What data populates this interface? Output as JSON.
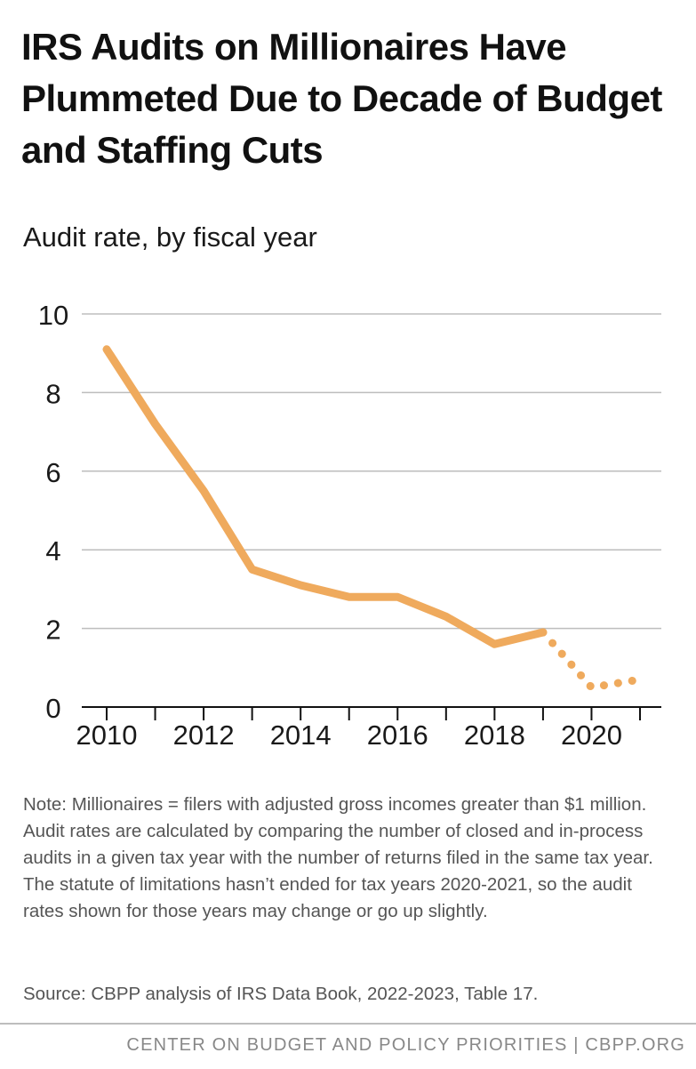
{
  "header": {
    "title": "IRS Audits on Millionaires Have Plummeted Due to Decade of Budget and Staffing Cuts",
    "subtitle": "Audit rate, by fiscal year"
  },
  "chart_data": {
    "type": "line",
    "title": "IRS Audits on Millionaires Have Plummeted Due to Decade of Budget and Staffing Cuts",
    "ylabel": "Audit rate, by fiscal year",
    "xlabel": "",
    "x": [
      2010,
      2011,
      2012,
      2013,
      2014,
      2015,
      2016,
      2017,
      2018,
      2019,
      2020,
      2021
    ],
    "series": [
      {
        "name": "Audit rate",
        "values": [
          9.1,
          7.2,
          5.5,
          3.5,
          3.1,
          2.8,
          2.8,
          2.3,
          1.6,
          1.9,
          0.5,
          0.7
        ],
        "dashed_from_index": 9,
        "color": "#EFAA5D"
      }
    ],
    "xlim": [
      2010,
      2021
    ],
    "ylim": [
      0,
      10
    ],
    "x_ticks": [
      2010,
      2012,
      2014,
      2016,
      2018,
      2020
    ],
    "y_ticks": [
      0,
      2,
      4,
      6,
      8,
      10
    ],
    "grid": true,
    "gridline_color": "#bdbdbd",
    "axis_color": "#111111"
  },
  "notes": {
    "note": "Note: Millionaires = filers with adjusted gross incomes greater than $1 million. Audit rates are calculated by comparing the number of closed and in-process audits in a given tax year with the number of returns filed in the same tax year. The statute of limitations hasn’t ended for tax years 2020-2021, so the audit rates shown for those years may change or go up slightly.",
    "source": "Source: CBPP analysis of IRS Data Book, 2022-2023, Table 17."
  },
  "footer": {
    "text": "CENTER ON BUDGET AND POLICY PRIORITIES | CBPP.ORG"
  }
}
